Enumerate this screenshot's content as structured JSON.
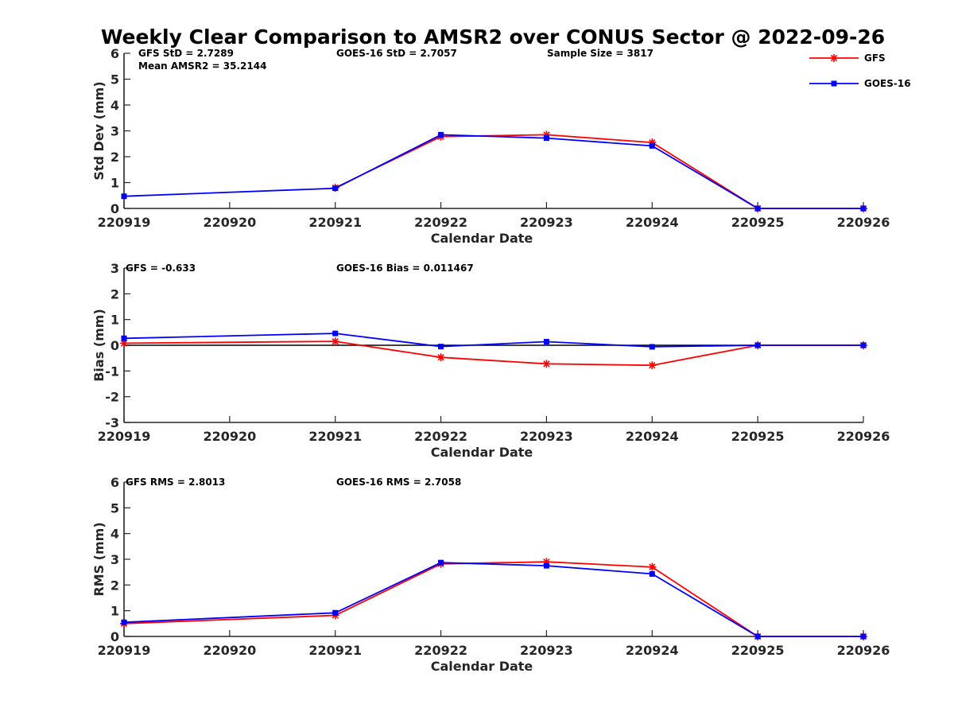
{
  "title": "Weekly Clear Comparison to AMSR2 over CONUS Sector @ 2022-09-26",
  "colors": {
    "GFS": "#ff0000",
    "GOES-16": "#0000ff",
    "axis": "#262626",
    "zero_line": "#000000"
  },
  "legend": {
    "placement": "top-right",
    "entries": [
      {
        "label": "GFS",
        "marker": "asterisk"
      },
      {
        "label": "GOES-16",
        "marker": "square"
      }
    ]
  },
  "chart_data": [
    {
      "type": "line",
      "xlabel": "Calendar Date",
      "ylabel": "Std Dev (mm)",
      "x_ticks": [
        "220919",
        "220920",
        "220921",
        "220922",
        "220923",
        "220924",
        "220925",
        "220926"
      ],
      "ylim": [
        0,
        6
      ],
      "y_ticks": [
        "0",
        "1",
        "2",
        "3",
        "4",
        "5",
        "6"
      ],
      "zero_line": false,
      "annotations": [
        "GFS StD = 2.7289",
        "Mean AMSR2 = 35.2144",
        "GOES-16 StD = 2.7057",
        "Sample Size = 3817"
      ],
      "series": [
        {
          "name": "GFS",
          "values": [
            null,
            null,
            0.8,
            2.78,
            2.85,
            2.55,
            0.0,
            0.0
          ]
        },
        {
          "name": "GOES-16",
          "values": [
            0.47,
            null,
            0.78,
            2.85,
            2.72,
            2.42,
            0.0,
            0.0
          ]
        }
      ]
    },
    {
      "type": "line",
      "xlabel": "Calendar Date",
      "ylabel": "Bias (mm)",
      "x_ticks": [
        "220919",
        "220920",
        "220921",
        "220922",
        "220923",
        "220924",
        "220925",
        "220926"
      ],
      "ylim": [
        -3,
        3
      ],
      "y_ticks": [
        "-3",
        "-2",
        "-1",
        "0",
        "1",
        "2",
        "3"
      ],
      "zero_line": true,
      "annotations": [
        "GFS = -0.633",
        "GOES-16 Bias  = 0.011467"
      ],
      "series": [
        {
          "name": "GFS",
          "values": [
            0.08,
            null,
            0.15,
            -0.47,
            -0.72,
            -0.78,
            0.0,
            0.0
          ]
        },
        {
          "name": "GOES-16",
          "values": [
            0.27,
            null,
            0.46,
            -0.05,
            0.14,
            -0.06,
            0.0,
            0.0
          ]
        }
      ]
    },
    {
      "type": "line",
      "xlabel": "Calendar Date",
      "ylabel": "RMS (mm)",
      "x_ticks": [
        "220919",
        "220920",
        "220921",
        "220922",
        "220923",
        "220924",
        "220925",
        "220926"
      ],
      "ylim": [
        0,
        6
      ],
      "y_ticks": [
        "0",
        "1",
        "2",
        "3",
        "4",
        "5",
        "6"
      ],
      "zero_line": false,
      "annotations": [
        "GFS RMS = 2.8013",
        "GOES-16 RMS = 2.7058"
      ],
      "series": [
        {
          "name": "GFS",
          "values": [
            0.5,
            null,
            0.82,
            2.82,
            2.9,
            2.7,
            0.0,
            0.0
          ]
        },
        {
          "name": "GOES-16",
          "values": [
            0.55,
            null,
            0.92,
            2.87,
            2.75,
            2.43,
            0.0,
            0.0
          ]
        }
      ]
    }
  ]
}
